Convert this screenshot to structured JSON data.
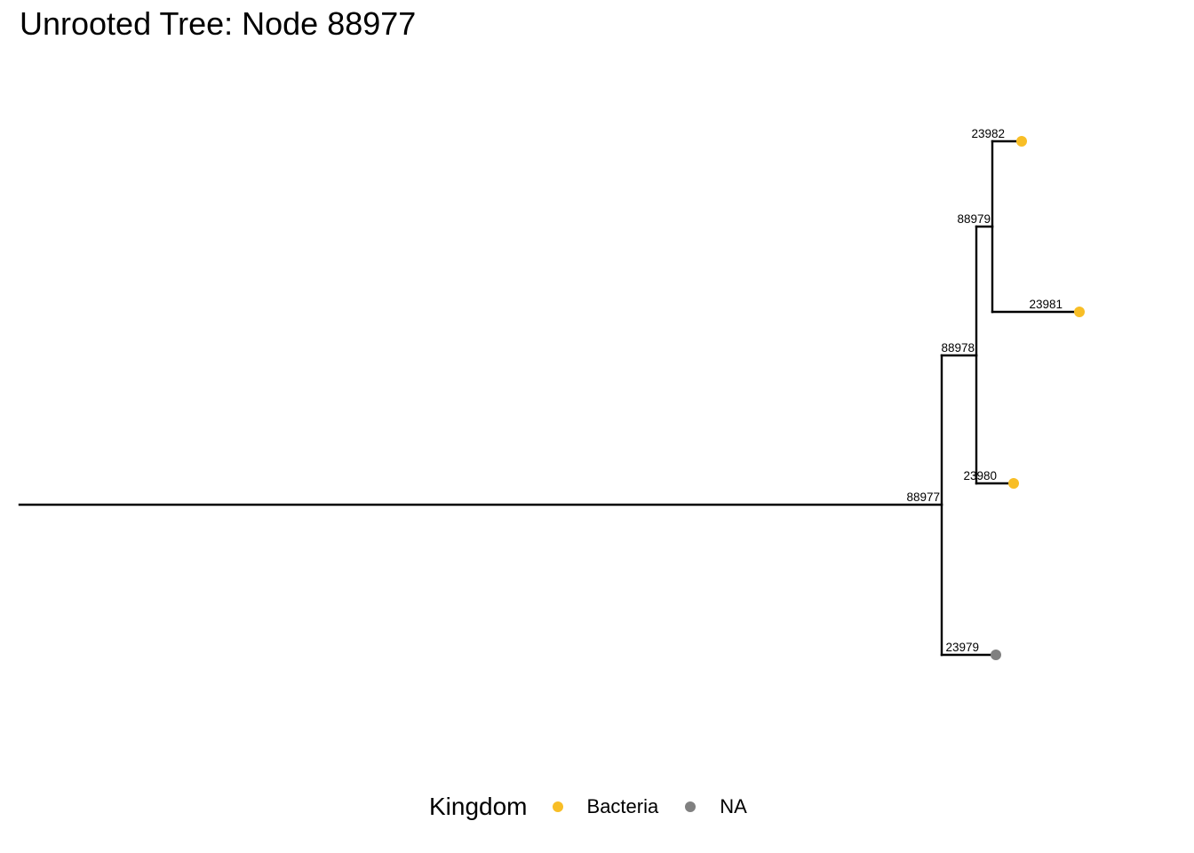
{
  "title": "Unrooted Tree: Node 88977",
  "colors": {
    "Bacteria": "#F8BE26",
    "NA": "#808080",
    "branch": "#000000"
  },
  "legend": {
    "title": "Kingdom",
    "items": [
      {
        "label": "Bacteria",
        "color": "#F8BE26"
      },
      {
        "label": "NA",
        "color": "#808080"
      }
    ]
  },
  "tree": {
    "nodes": [
      {
        "id": "88977"
      },
      {
        "id": "88978",
        "parent": "88977"
      },
      {
        "id": "88979",
        "parent": "88978"
      },
      {
        "id": "23979",
        "parent": "88977",
        "kingdom": "NA"
      },
      {
        "id": "23980",
        "parent": "88978",
        "kingdom": "Bacteria"
      },
      {
        "id": "23981",
        "parent": "88979",
        "kingdom": "Bacteria"
      },
      {
        "id": "23982",
        "parent": "88979",
        "kingdom": "Bacteria"
      }
    ]
  }
}
